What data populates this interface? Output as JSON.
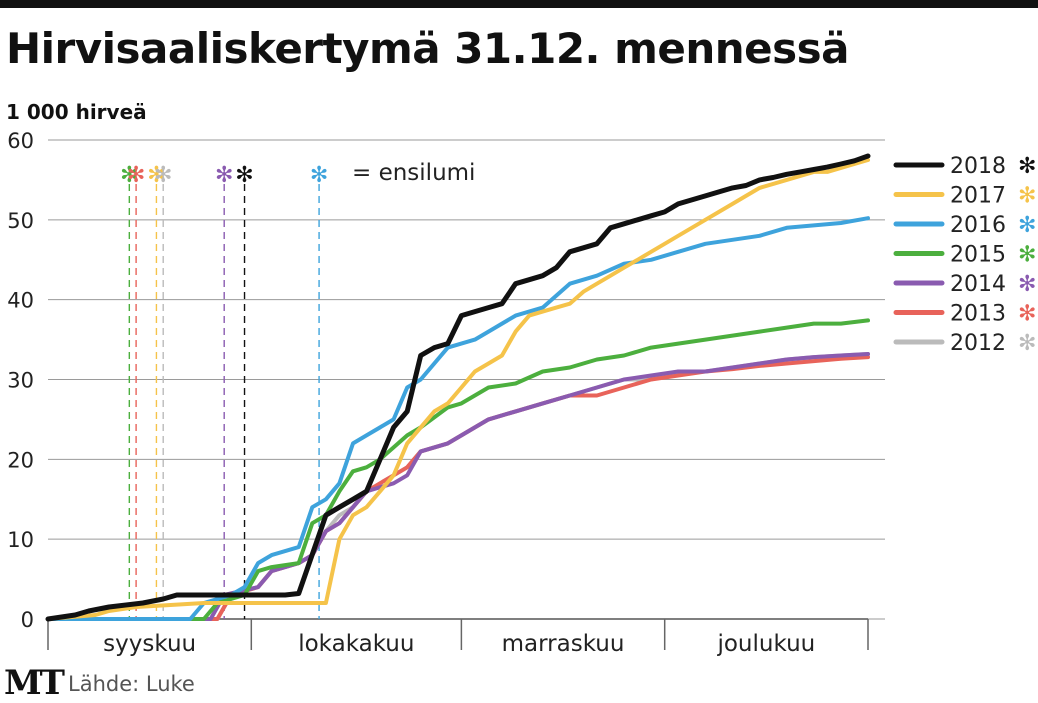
{
  "header": {
    "title": "Hirvisaaliskertymä 31.12. mennessä",
    "unit": "1 000 hirveä"
  },
  "footer": {
    "logo": "MT",
    "source": "Lähde: Luke"
  },
  "snow_legend_label": "= ensilumi",
  "snow_symbol": "✻",
  "chart_data": {
    "type": "line",
    "title": "Hirvisaaliskertymä 31.12. mennessä",
    "ylabel": "1 000 hirveä",
    "ylim": [
      0,
      60
    ],
    "y_ticks": [
      0,
      10,
      20,
      30,
      40,
      50,
      60
    ],
    "x_range_days": [
      1,
      122
    ],
    "month_boundaries": [
      1,
      31,
      62,
      92,
      122
    ],
    "months": [
      "syyskuu",
      "lokakakuu",
      "marraskuu",
      "joulukuu"
    ],
    "grid": true,
    "legend_position": "right",
    "first_snow": [
      {
        "year": "2015",
        "day": 13
      },
      {
        "year": "2013",
        "day": 14
      },
      {
        "year": "2017",
        "day": 17
      },
      {
        "year": "2012",
        "day": 18
      },
      {
        "year": "2014",
        "day": 27
      },
      {
        "year": "2018",
        "day": 30
      },
      {
        "year": "2016",
        "day": 41
      }
    ],
    "series": [
      {
        "name": "2012",
        "color": "#bbbbbb",
        "x": [
          1,
          26,
          28,
          32,
          34,
          38,
          40,
          42,
          44,
          46,
          48,
          52,
          54,
          56,
          60,
          64,
          66,
          70,
          74,
          78,
          82,
          86,
          90,
          94,
          98,
          102,
          106,
          110,
          114,
          118,
          122
        ],
        "values": [
          0,
          0,
          3,
          4,
          6,
          7,
          8,
          11,
          13,
          14,
          16,
          18,
          19,
          21,
          22,
          24,
          25,
          26,
          27,
          28,
          29,
          30,
          30,
          31,
          31,
          31.5,
          32,
          32.5,
          32.8,
          33,
          33.2
        ]
      },
      {
        "name": "2013",
        "color": "#e8635a",
        "x": [
          1,
          26,
          28,
          32,
          34,
          38,
          40,
          42,
          44,
          46,
          48,
          52,
          54,
          56,
          60,
          64,
          66,
          70,
          74,
          78,
          82,
          86,
          90,
          94,
          98,
          102,
          106,
          110,
          114,
          118,
          122
        ],
        "values": [
          0,
          0,
          3,
          4,
          6,
          7,
          8,
          11,
          12,
          14,
          16,
          18,
          19,
          21,
          22,
          24,
          25,
          26,
          27,
          28,
          28,
          29,
          30,
          30.5,
          31,
          31.3,
          31.7,
          32,
          32.3,
          32.6,
          32.8
        ]
      },
      {
        "name": "2014",
        "color": "#8a5bb0",
        "x": [
          1,
          25,
          27,
          32,
          34,
          38,
          40,
          42,
          44,
          46,
          48,
          52,
          54,
          56,
          60,
          64,
          66,
          70,
          74,
          78,
          82,
          86,
          90,
          94,
          98,
          102,
          106,
          110,
          114,
          118,
          122
        ],
        "values": [
          0,
          0,
          3,
          4,
          6,
          7,
          8,
          11,
          12,
          14,
          16,
          17,
          18,
          21,
          22,
          24,
          25,
          26,
          27,
          28,
          29,
          30,
          30.5,
          31,
          31,
          31.5,
          32,
          32.5,
          32.8,
          33,
          33.2
        ]
      },
      {
        "name": "2015",
        "color": "#4caf3e",
        "x": [
          1,
          24,
          26,
          30,
          32,
          34,
          38,
          40,
          42,
          44,
          46,
          48,
          50,
          54,
          56,
          60,
          62,
          66,
          70,
          74,
          78,
          82,
          86,
          90,
          94,
          98,
          102,
          106,
          110,
          114,
          118,
          122
        ],
        "values": [
          0,
          0,
          2,
          3,
          6,
          6.5,
          7,
          12,
          13,
          16,
          18.5,
          19,
          20,
          23,
          24,
          26.5,
          27,
          29,
          29.5,
          31,
          31.5,
          32.5,
          33,
          34,
          34.5,
          35,
          35.5,
          36,
          36.5,
          37,
          37,
          37.4
        ]
      },
      {
        "name": "2016",
        "color": "#3ea3dc",
        "x": [
          1,
          22,
          24,
          28,
          30,
          32,
          34,
          38,
          40,
          42,
          44,
          46,
          48,
          52,
          54,
          56,
          60,
          64,
          66,
          70,
          74,
          78,
          82,
          86,
          90,
          94,
          98,
          102,
          106,
          110,
          114,
          118,
          122
        ],
        "values": [
          0,
          0,
          2,
          3,
          4,
          7,
          8,
          9,
          14,
          15,
          17,
          22,
          23,
          25,
          29,
          30,
          34,
          35,
          36,
          38,
          39,
          42,
          43,
          44.5,
          45,
          46,
          47,
          47.5,
          48,
          49,
          49.3,
          49.6,
          50.2
        ]
      },
      {
        "name": "2017",
        "color": "#f5c34a",
        "x": [
          1,
          8,
          10,
          14,
          20,
          24,
          31,
          42,
          44,
          46,
          48,
          50,
          52,
          54,
          56,
          58,
          60,
          62,
          64,
          66,
          68,
          70,
          72,
          74,
          76,
          78,
          80,
          82,
          84,
          86,
          88,
          90,
          92,
          94,
          96,
          98,
          100,
          102,
          104,
          106,
          108,
          110,
          112,
          114,
          116,
          118,
          120,
          122
        ],
        "values": [
          0,
          0.5,
          1,
          1.5,
          1.8,
          2,
          2,
          2,
          10,
          13,
          14,
          16,
          18,
          22,
          24,
          26,
          27,
          29,
          31,
          32,
          33,
          36,
          38,
          38.5,
          39,
          39.5,
          41,
          42,
          43,
          44,
          45,
          46,
          47,
          48,
          49,
          50,
          51,
          52,
          53,
          54,
          54.5,
          55,
          55.5,
          56,
          56,
          56.5,
          57,
          57.5
        ]
      },
      {
        "name": "2018",
        "color": "#111111",
        "x": [
          1,
          5,
          7,
          10,
          15,
          18,
          20,
          22,
          28,
          30,
          34,
          36,
          38,
          42,
          44,
          46,
          48,
          50,
          52,
          53,
          54,
          56,
          58,
          60,
          62,
          64,
          66,
          68,
          70,
          72,
          74,
          76,
          78,
          80,
          82,
          84,
          86,
          88,
          90,
          92,
          94,
          96,
          98,
          100,
          102,
          104,
          106,
          108,
          110,
          112,
          114,
          116,
          118,
          120,
          122
        ],
        "values": [
          0,
          0.5,
          1,
          1.5,
          2,
          2.5,
          3,
          3,
          3,
          3,
          3,
          3,
          3.2,
          13,
          14,
          15,
          16,
          20,
          24,
          25,
          26,
          33,
          34,
          34.5,
          38,
          38.5,
          39,
          39.5,
          42,
          42.5,
          43,
          44,
          46,
          46.5,
          47,
          49,
          49.5,
          50,
          50.5,
          51,
          52,
          52.5,
          53,
          53.5,
          54,
          54.3,
          55,
          55.3,
          55.7,
          56,
          56.3,
          56.6,
          57,
          57.4,
          58
        ]
      }
    ]
  }
}
